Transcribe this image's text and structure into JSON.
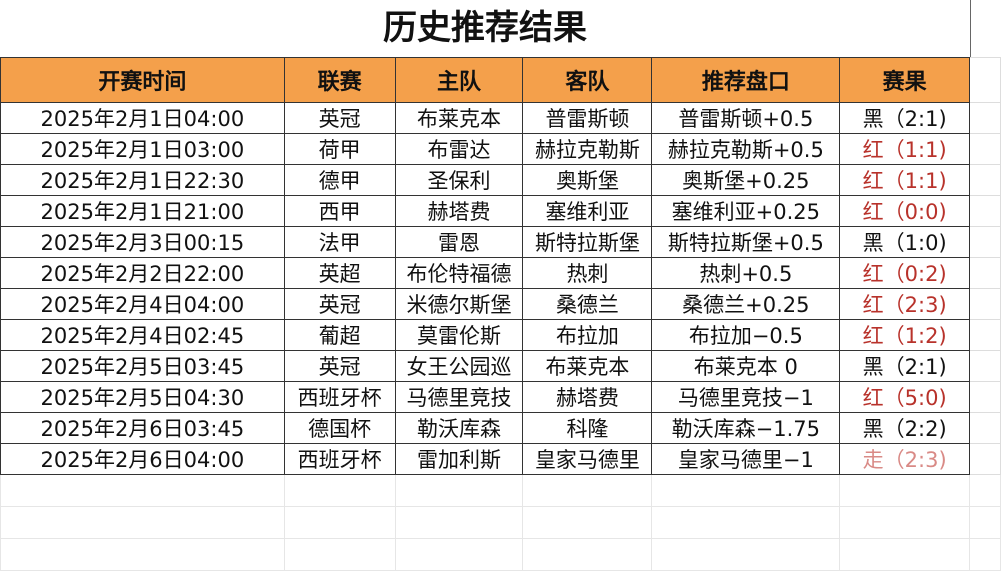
{
  "title": "历史推荐结果",
  "headers": [
    "开赛时间",
    "联赛",
    "主队",
    "客队",
    "推荐盘口",
    "赛果"
  ],
  "colors": {
    "header_bg": "#F4A04B",
    "red": "#b8322b",
    "black": "#111111",
    "walk": "#d98a86"
  },
  "rows": [
    {
      "time": "2025年2月1日04:00",
      "league": "英冠",
      "home": "布莱克本",
      "away": "普雷斯顿",
      "pick": "普雷斯顿+0.5",
      "result": "黑（2:1)",
      "status": "black"
    },
    {
      "time": "2025年2月1日03:00",
      "league": "荷甲",
      "home": "布雷达",
      "away": "赫拉克勒斯",
      "pick": "赫拉克勒斯+0.5",
      "result": "红（1:1)",
      "status": "red"
    },
    {
      "time": "2025年2月1日22:30",
      "league": "德甲",
      "home": "圣保利",
      "away": "奥斯堡",
      "pick": "奥斯堡+0.25",
      "result": "红（1:1)",
      "status": "red"
    },
    {
      "time": "2025年2月1日21:00",
      "league": "西甲",
      "home": "赫塔费",
      "away": "塞维利亚",
      "pick": "塞维利亚+0.25",
      "result": "红（0:0)",
      "status": "red"
    },
    {
      "time": "2025年2月3日00:15",
      "league": "法甲",
      "home": "雷恩",
      "away": "斯特拉斯堡",
      "pick": "斯特拉斯堡+0.5",
      "result": "黑（1:0)",
      "status": "black"
    },
    {
      "time": "2025年2月2日22:00",
      "league": "英超",
      "home": "布伦特福德",
      "away": "热刺",
      "pick": "热刺+0.5",
      "result": "红（0:2)",
      "status": "red"
    },
    {
      "time": "2025年2月4日04:00",
      "league": "英冠",
      "home": "米德尔斯堡",
      "away": "桑德兰",
      "pick": "桑德兰+0.25",
      "result": "红（2:3)",
      "status": "red"
    },
    {
      "time": "2025年2月4日02:45",
      "league": "葡超",
      "home": "莫雷伦斯",
      "away": "布拉加",
      "pick": "布拉加−0.5",
      "result": "红（1:2)",
      "status": "red"
    },
    {
      "time": "2025年2月5日03:45",
      "league": "英冠",
      "home": "女王公园巡",
      "away": "布莱克本",
      "pick": "布莱克本 0",
      "result": "黑（2:1)",
      "status": "black"
    },
    {
      "time": "2025年2月5日04:30",
      "league": "西班牙杯",
      "home": "马德里竞技",
      "away": "赫塔费",
      "pick": "马德里竞技−1",
      "result": "红（5:0)",
      "status": "red"
    },
    {
      "time": "2025年2月6日03:45",
      "league": "德国杯",
      "home": "勒沃库森",
      "away": "科隆",
      "pick": "勒沃库森−1.75",
      "result": "黑（2:2)",
      "status": "black"
    },
    {
      "time": "2025年2月6日04:00",
      "league": "西班牙杯",
      "home": "雷加利斯",
      "away": "皇家马德里",
      "pick": "皇家马德里−1",
      "result": "走（2:3)",
      "status": "walk"
    }
  ]
}
